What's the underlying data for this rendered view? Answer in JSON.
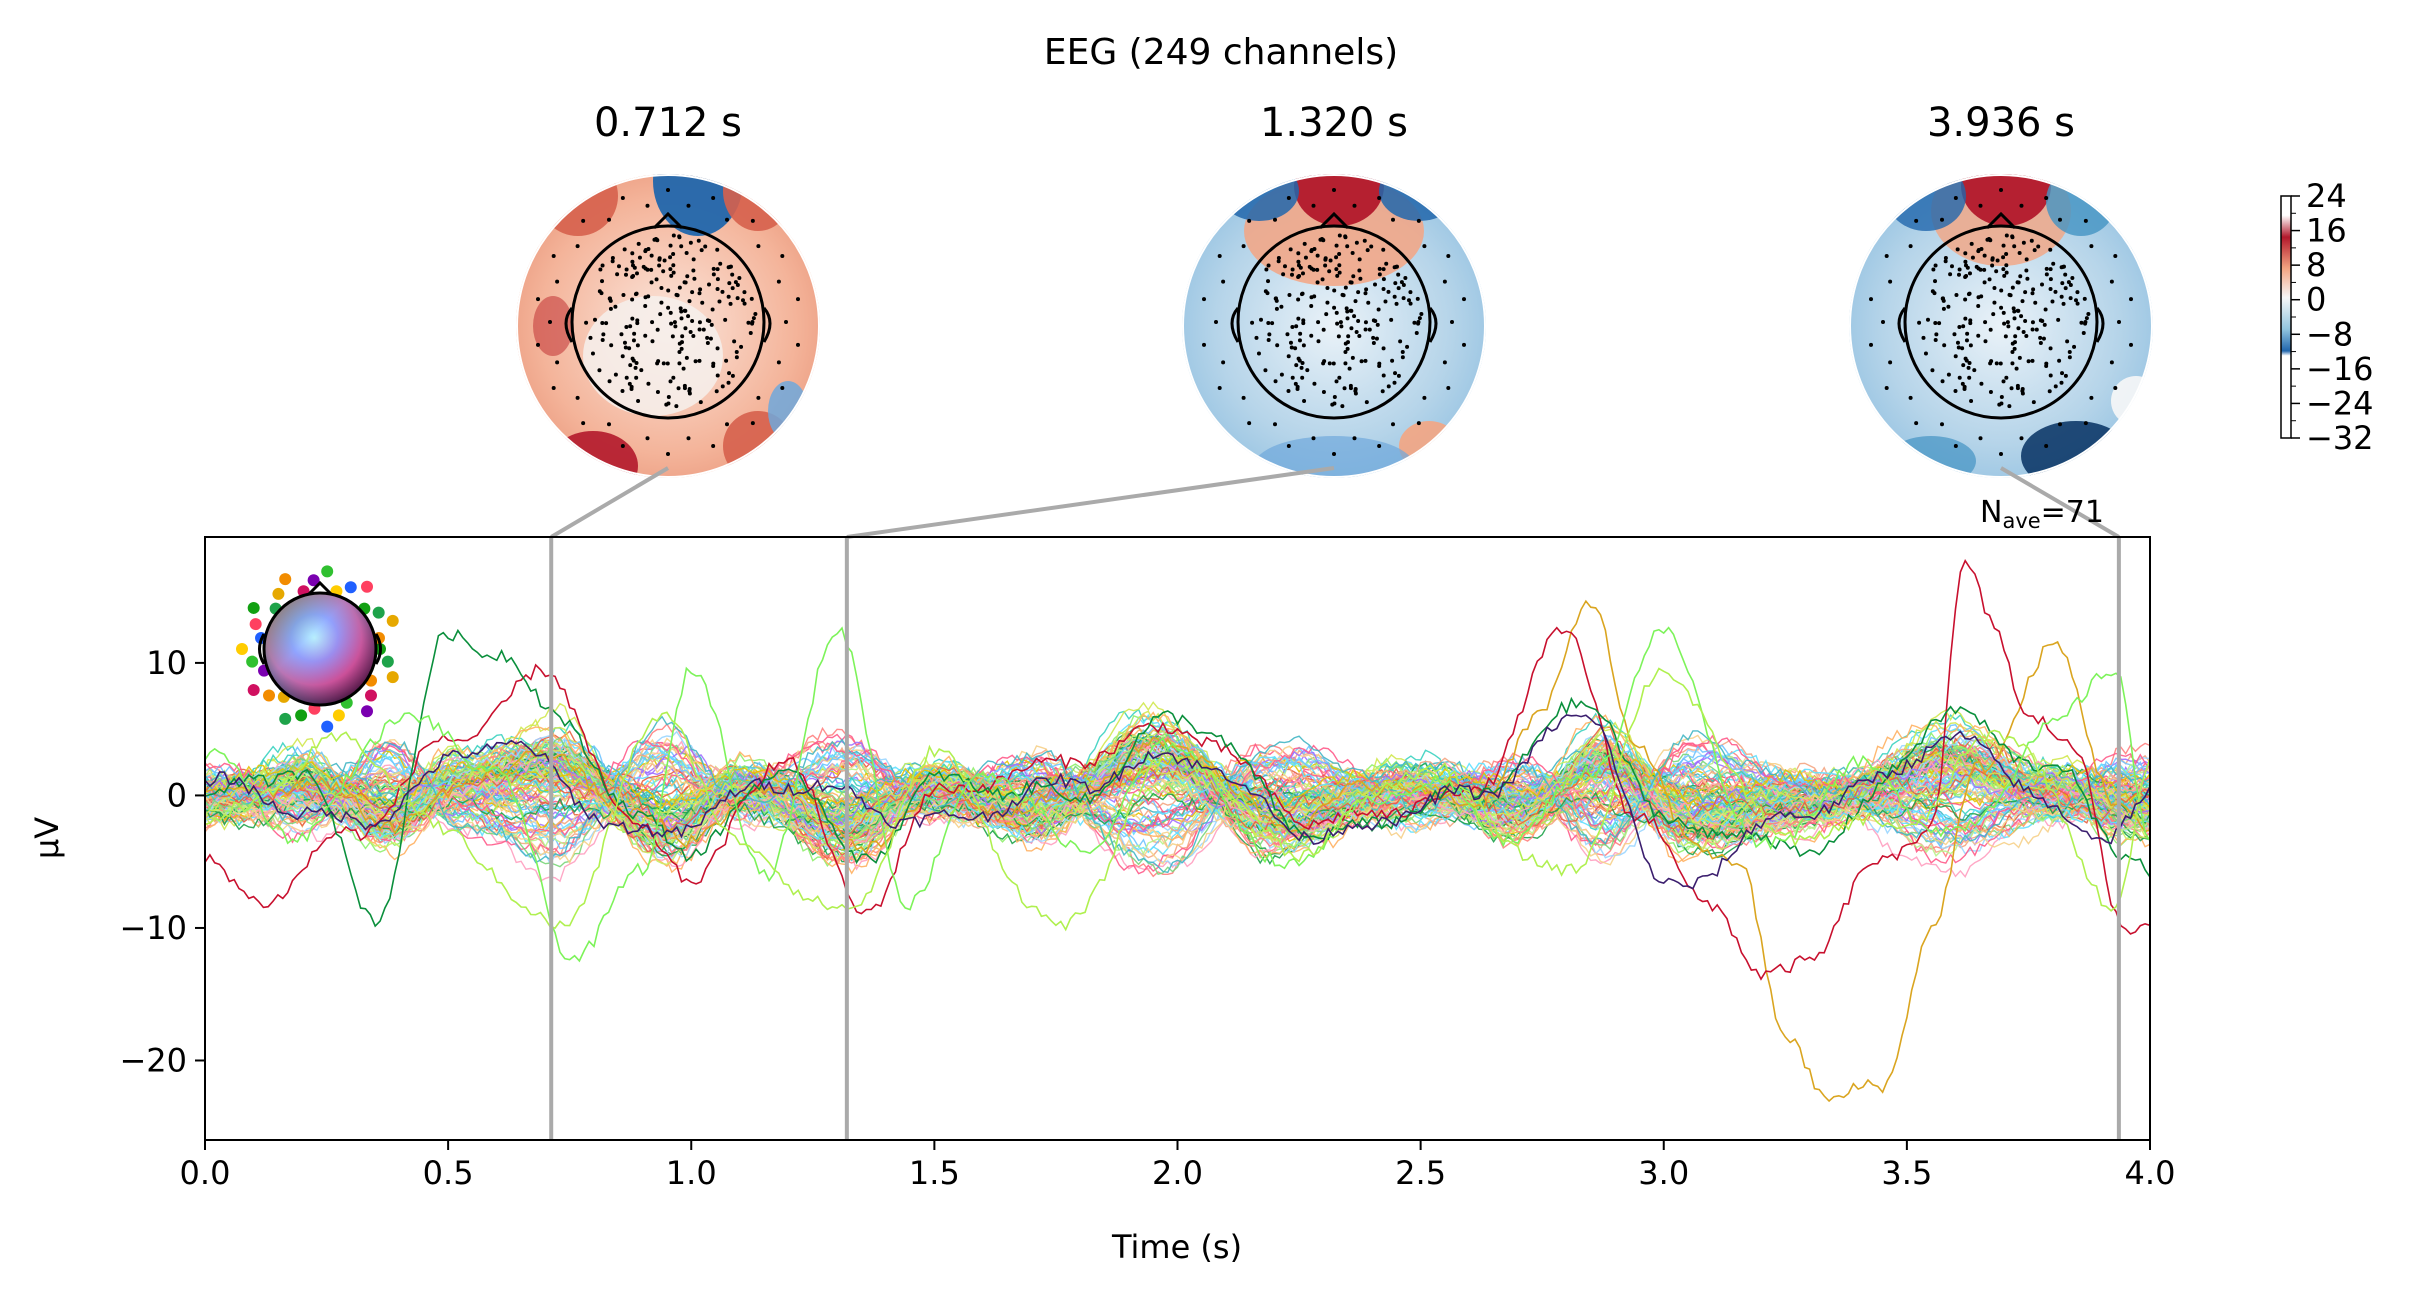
{
  "figure": {
    "title": "EEG (249 channels)",
    "nave_text": "N",
    "nave_sub": "ave",
    "nave_value": "=71"
  },
  "colors": {
    "axis": "#000000",
    "connector": "#aaaaaa",
    "cmap_neg": "#053061",
    "cmap_mid": "#f7f7f7",
    "cmap_pos": "#67001f"
  },
  "chart_data": [
    {
      "type": "line",
      "description_kind": "butterfly",
      "xlabel": "Time (s)",
      "ylabel": "µV",
      "xlim": [
        0.0,
        4.0
      ],
      "ylim": [
        -26,
        19.5
      ],
      "xticks": [
        0.0,
        0.5,
        1.0,
        1.5,
        2.0,
        2.5,
        3.0,
        3.5,
        4.0
      ],
      "xtick_labels": [
        "0.0",
        "0.5",
        "1.0",
        "1.5",
        "2.0",
        "2.5",
        "3.0",
        "3.5",
        "4.0"
      ],
      "yticks": [
        10,
        0,
        -10,
        -20
      ],
      "ytick_labels": [
        "10",
        "0",
        "−10",
        "−20"
      ],
      "grid": false,
      "n_channels": 249,
      "highlight_times": [
        0.712,
        1.32,
        3.936
      ],
      "series": [
        {
          "color": "#daa520",
          "x": [
            0.0,
            0.2,
            0.4,
            0.6,
            0.72,
            0.9,
            1.0,
            1.2,
            1.35,
            1.5,
            1.7,
            2.0,
            2.2,
            2.45,
            2.6,
            2.75,
            2.85,
            2.95,
            3.05,
            3.15,
            3.25,
            3.35,
            3.45,
            3.55,
            3.65,
            3.8,
            3.93,
            4.0
          ],
          "y": [
            0,
            1,
            -2,
            2,
            3,
            -2,
            -3,
            1,
            -4,
            0,
            -1,
            4,
            -2,
            1,
            -1,
            6,
            15,
            3,
            -3,
            -5,
            -18,
            -23,
            -22,
            -10,
            2,
            11,
            0,
            -3
          ]
        },
        {
          "color": "#c8102e",
          "x": [
            0.0,
            0.1,
            0.3,
            0.5,
            0.7,
            0.9,
            1.0,
            1.2,
            1.35,
            1.5,
            1.7,
            2.0,
            2.3,
            2.6,
            2.8,
            2.95,
            3.1,
            3.2,
            3.3,
            3.45,
            3.55,
            3.62,
            3.68,
            3.75,
            3.85,
            3.95,
            4.0
          ],
          "y": [
            -5,
            -8,
            -3,
            4,
            9,
            -3,
            -6,
            3,
            -9,
            0,
            2,
            5,
            -2,
            0,
            12,
            -2,
            -8,
            -14,
            -12,
            -5,
            -2,
            17,
            13,
            6,
            3,
            -10,
            -10
          ]
        },
        {
          "color": "#0a8f3c",
          "x": [
            0.0,
            0.2,
            0.35,
            0.5,
            0.6,
            0.72,
            0.9,
            1.0,
            1.2,
            1.35,
            1.5,
            1.8,
            2.0,
            2.3,
            2.6,
            2.85,
            3.0,
            3.3,
            3.6,
            3.8,
            3.95,
            4.0
          ],
          "y": [
            0,
            2,
            -9,
            12,
            11,
            6,
            -2,
            -4,
            2,
            -5,
            1,
            0,
            6,
            -3,
            0,
            7,
            -2,
            -4,
            6,
            2,
            -4,
            -6
          ]
        },
        {
          "color": "#7df35a",
          "x": [
            0.0,
            0.2,
            0.4,
            0.6,
            0.75,
            0.9,
            1.0,
            1.15,
            1.3,
            1.45,
            1.6,
            1.8,
            2.0,
            2.2,
            2.5,
            2.7,
            2.85,
            3.0,
            3.2,
            3.4,
            3.6,
            3.8,
            3.93,
            4.0
          ],
          "y": [
            3,
            -3,
            6,
            2,
            -12,
            -6,
            10,
            -6,
            12,
            -8,
            2,
            -4,
            4,
            -5,
            1,
            -3,
            2,
            12,
            -4,
            2,
            -3,
            5,
            10,
            -4
          ]
        },
        {
          "color": "#b0f050",
          "x": [
            0.0,
            0.3,
            0.5,
            0.72,
            0.95,
            1.1,
            1.32,
            1.5,
            1.75,
            2.0,
            2.25,
            2.5,
            2.8,
            3.0,
            3.25,
            3.5,
            3.7,
            3.93,
            4.0
          ],
          "y": [
            -2,
            4,
            -3,
            -10,
            6,
            -4,
            -9,
            3,
            -10,
            3,
            -4,
            2,
            -6,
            9,
            -3,
            -2,
            5,
            -8,
            2
          ]
        },
        {
          "color": "#3b1e6e",
          "x": [
            0.0,
            0.3,
            0.6,
            0.9,
            1.2,
            1.5,
            1.8,
            2.0,
            2.3,
            2.6,
            2.85,
            3.0,
            3.3,
            3.6,
            3.9,
            4.0
          ],
          "y": [
            1,
            -2,
            4,
            -3,
            1,
            -2,
            1,
            3,
            -3,
            0,
            6,
            -7,
            -1,
            4,
            -3,
            0
          ]
        }
      ]
    },
    {
      "type": "heatmap",
      "description_kind": "topomap",
      "titles": [
        "0.712 s",
        "1.320 s",
        "3.936 s"
      ],
      "times": [
        0.712,
        1.32,
        3.936
      ]
    },
    {
      "type": "heatmap",
      "description_kind": "colorbar",
      "ticks": [
        24,
        16,
        8,
        0,
        -8,
        -16,
        -24,
        -32
      ],
      "tick_labels": [
        "24",
        "16",
        "8",
        "0",
        "−8",
        "−16",
        "−24",
        "−32"
      ],
      "range": [
        -32,
        24
      ]
    }
  ]
}
